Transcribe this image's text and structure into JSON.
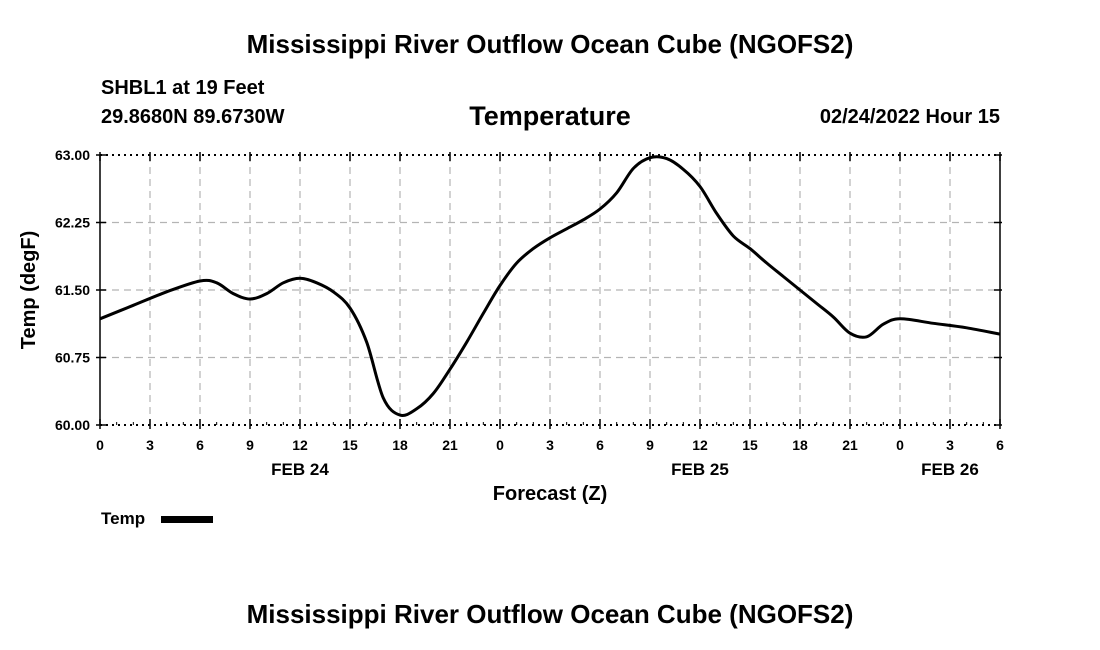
{
  "header": {
    "title": "Mississippi River Outflow Ocean Cube (NGOFS2)",
    "station": "SHBL1 at 19 Feet",
    "coords": "29.8680N  89.6730W",
    "plot_title": "Temperature",
    "timestamp": "02/24/2022 Hour 15"
  },
  "footer": {
    "title": "Mississippi River Outflow Ocean Cube (NGOFS2)"
  },
  "legend": {
    "label": "Temp",
    "color": "#000000"
  },
  "chart_data": {
    "type": "line",
    "title": "Temperature",
    "xlabel": "Forecast (Z)",
    "ylabel": "Temp (degF)",
    "xlim": [
      0,
      54
    ],
    "ylim": [
      60.0,
      63.0
    ],
    "yticks": [
      "60.00",
      "60.75",
      "61.50",
      "62.25",
      "63.00"
    ],
    "xticks": [
      {
        "x": 0,
        "label": "0"
      },
      {
        "x": 3,
        "label": "3"
      },
      {
        "x": 6,
        "label": "6"
      },
      {
        "x": 9,
        "label": "9"
      },
      {
        "x": 12,
        "label": "12"
      },
      {
        "x": 15,
        "label": "15"
      },
      {
        "x": 18,
        "label": "18"
      },
      {
        "x": 21,
        "label": "21"
      },
      {
        "x": 24,
        "label": "0"
      },
      {
        "x": 27,
        "label": "3"
      },
      {
        "x": 30,
        "label": "6"
      },
      {
        "x": 33,
        "label": "9"
      },
      {
        "x": 36,
        "label": "12"
      },
      {
        "x": 39,
        "label": "15"
      },
      {
        "x": 42,
        "label": "18"
      },
      {
        "x": 45,
        "label": "21"
      },
      {
        "x": 48,
        "label": "0"
      },
      {
        "x": 51,
        "label": "3"
      },
      {
        "x": 54,
        "label": "6"
      }
    ],
    "date_labels": [
      {
        "x": 12,
        "label": "FEB 24"
      },
      {
        "x": 36,
        "label": "FEB 25"
      },
      {
        "x": 51,
        "label": "FEB 26"
      }
    ],
    "grid": true,
    "series": [
      {
        "name": "Temp",
        "color": "#000000",
        "x": [
          0,
          2,
          4,
          6,
          7,
          8,
          9,
          10,
          11,
          12,
          13,
          14,
          15,
          16,
          17,
          18,
          19,
          20,
          21,
          22,
          23,
          24,
          25,
          26,
          27,
          28,
          29,
          30,
          31,
          32,
          33,
          34,
          35,
          36,
          37,
          38,
          39,
          40,
          41,
          42,
          43,
          44,
          45,
          46,
          47,
          48,
          50,
          52,
          54
        ],
        "values": [
          61.18,
          61.33,
          61.48,
          61.6,
          61.58,
          61.46,
          61.4,
          61.46,
          61.58,
          61.63,
          61.58,
          61.48,
          61.3,
          60.92,
          60.3,
          60.11,
          60.18,
          60.35,
          60.62,
          60.92,
          61.24,
          61.55,
          61.8,
          61.96,
          62.08,
          62.18,
          62.28,
          62.4,
          62.58,
          62.85,
          62.97,
          62.96,
          62.84,
          62.65,
          62.35,
          62.1,
          61.96,
          61.8,
          61.65,
          61.5,
          61.35,
          61.2,
          61.02,
          60.98,
          61.12,
          61.18,
          61.13,
          61.08,
          61.01
        ]
      }
    ]
  }
}
